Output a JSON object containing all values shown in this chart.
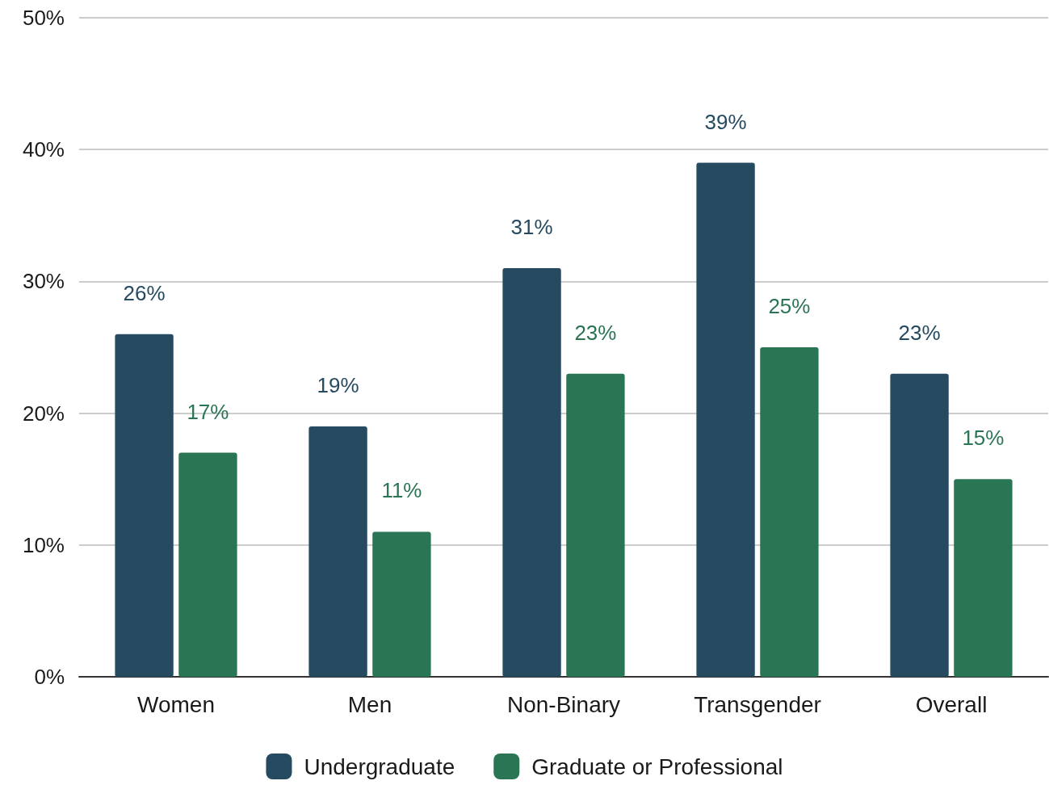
{
  "chart_data": {
    "type": "bar",
    "categories": [
      "Women",
      "Men",
      "Non-Binary",
      "Transgender",
      "Overall"
    ],
    "series": [
      {
        "name": "Undergraduate",
        "color": "#264a60",
        "values": [
          26,
          19,
          31,
          39,
          23
        ],
        "value_labels": [
          "26%",
          "19%",
          "31%",
          "39%",
          "23%"
        ]
      },
      {
        "name": "Graduate or Professional",
        "color": "#2a7554",
        "values": [
          17,
          11,
          23,
          25,
          15
        ],
        "value_labels": [
          "17%",
          "11%",
          "23%",
          "25%",
          "15%"
        ]
      }
    ],
    "ylim": [
      0,
      50
    ],
    "yticks": [
      {
        "value": 0,
        "label": "0%"
      },
      {
        "value": 10,
        "label": "10%"
      },
      {
        "value": 20,
        "label": "20%"
      },
      {
        "value": 30,
        "label": "30%"
      },
      {
        "value": 40,
        "label": "40%"
      },
      {
        "value": 50,
        "label": "50%"
      }
    ],
    "grid": "y",
    "legend": "bottom"
  }
}
